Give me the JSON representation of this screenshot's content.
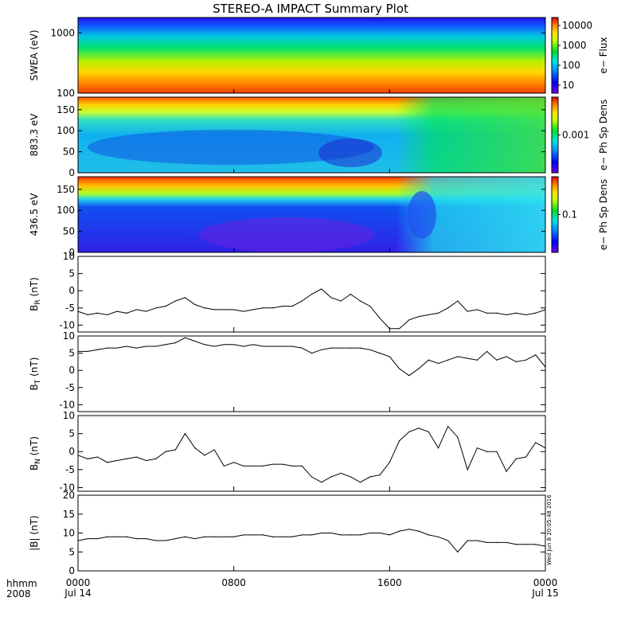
{
  "chart_data": {
    "title": "STEREO-A IMPACT Summary Plot",
    "time_axis": {
      "label_top": "hhmm",
      "label_bottom": "2008",
      "ticks": [
        {
          "hhmm": "0000",
          "date": "Jul 14",
          "hour": 0
        },
        {
          "hhmm": "0800",
          "date": "",
          "hour": 8
        },
        {
          "hhmm": "1600",
          "date": "",
          "hour": 16
        },
        {
          "hhmm": "0000",
          "date": "Jul 15",
          "hour": 24
        }
      ],
      "range_hours": [
        0,
        24
      ]
    },
    "stamp": "Wed Jun 8 20:05:48 2016",
    "spectrograms": [
      {
        "type": "heatmap",
        "ylabel": "SWEA (eV)",
        "yscale": "log",
        "ylim": [
          100,
          1800
        ],
        "yticks": [
          "1000",
          "100"
        ],
        "colorbar_label": "e− Flux",
        "colorbar_ticks": [
          "10000",
          "1000",
          "100",
          "10"
        ]
      },
      {
        "type": "heatmap",
        "ylabel": "883.3 eV",
        "ylim": [
          0,
          180
        ],
        "yticks": [
          "150",
          "100",
          "50",
          "0"
        ],
        "colorbar_label": "e− Ph Sp Dens",
        "colorbar_ticks": [
          "0.001"
        ]
      },
      {
        "type": "heatmap",
        "ylabel": "436.5 eV",
        "ylim": [
          0,
          180
        ],
        "yticks": [
          "150",
          "100",
          "50",
          "0"
        ],
        "colorbar_label": "e− Ph Sp Dens",
        "colorbar_ticks": [
          "0.1"
        ]
      }
    ],
    "line_panels": [
      {
        "type": "line",
        "ylabel_main": "B",
        "ylabel_sub": "R",
        "ylabel_tail": " (nT)",
        "ylim": [
          -12,
          10
        ],
        "yticks": [
          "10",
          "5",
          "0",
          "-5",
          "-10"
        ],
        "x": [
          0,
          0.5,
          1,
          1.5,
          2,
          2.5,
          3,
          3.5,
          4,
          4.5,
          5,
          5.5,
          6,
          6.5,
          7,
          7.5,
          8,
          8.5,
          9,
          9.5,
          10,
          10.5,
          11,
          11.5,
          12,
          12.5,
          13,
          13.5,
          14,
          14.5,
          15,
          15.5,
          16,
          16.5,
          17,
          17.5,
          18,
          18.5,
          19,
          19.5,
          20,
          20.5,
          21,
          21.5,
          22,
          22.5,
          23,
          23.5,
          24
        ],
        "y": [
          -6,
          -7,
          -6.5,
          -7,
          -6,
          -6.5,
          -5.5,
          -6,
          -5,
          -4.5,
          -3,
          -2,
          -4,
          -5,
          -5.5,
          -5.5,
          -5.5,
          -6,
          -5.5,
          -5,
          -5,
          -4.5,
          -4.5,
          -3,
          -1,
          0.5,
          -2,
          -3,
          -1,
          -3,
          -4.5,
          -8,
          -11,
          -11,
          -8.5,
          -7.5,
          -7,
          -6.5,
          -5,
          -3,
          -6,
          -5.5,
          -6.5,
          -6.5,
          -7,
          -6.5,
          -7,
          -6.5,
          -5.5
        ]
      },
      {
        "type": "line",
        "ylabel_main": "B",
        "ylabel_sub": "T",
        "ylabel_tail": " (nT)",
        "ylim": [
          -12,
          10
        ],
        "yticks": [
          "10",
          "5",
          "0",
          "-5",
          "-10"
        ],
        "x": [
          0,
          0.5,
          1,
          1.5,
          2,
          2.5,
          3,
          3.5,
          4,
          4.5,
          5,
          5.5,
          6,
          6.5,
          7,
          7.5,
          8,
          8.5,
          9,
          9.5,
          10,
          10.5,
          11,
          11.5,
          12,
          12.5,
          13,
          13.5,
          14,
          14.5,
          15,
          15.5,
          16,
          16.5,
          17,
          17.5,
          18,
          18.5,
          19,
          19.5,
          20,
          20.5,
          21,
          21.5,
          22,
          22.5,
          23,
          23.5,
          24
        ],
        "y": [
          5.5,
          5.5,
          6,
          6.5,
          6.5,
          7,
          6.5,
          7,
          7,
          7.5,
          8,
          9.5,
          8.5,
          7.5,
          7,
          7.5,
          7.5,
          7,
          7.5,
          7,
          7,
          7,
          7,
          6.5,
          5,
          6,
          6.5,
          6.5,
          6.5,
          6.5,
          6,
          5,
          4,
          0.5,
          -1.5,
          0.5,
          3,
          2,
          3,
          4,
          3.5,
          3,
          5.5,
          3,
          4,
          2.5,
          3,
          4.5,
          1
        ]
      },
      {
        "type": "line",
        "ylabel_main": "B",
        "ylabel_sub": "N",
        "ylabel_tail": " (nT)",
        "ylim": [
          -11,
          10
        ],
        "yticks": [
          "10",
          "5",
          "0",
          "-5",
          "-10"
        ],
        "x": [
          0,
          0.5,
          1,
          1.5,
          2,
          2.5,
          3,
          3.5,
          4,
          4.5,
          5,
          5.5,
          6,
          6.5,
          7,
          7.5,
          8,
          8.5,
          9,
          9.5,
          10,
          10.5,
          11,
          11.5,
          12,
          12.5,
          13,
          13.5,
          14,
          14.5,
          15,
          15.5,
          16,
          16.5,
          17,
          17.5,
          18,
          18.5,
          19,
          19.5,
          20,
          20.5,
          21,
          21.5,
          22,
          22.5,
          23,
          23.5,
          24
        ],
        "y": [
          -1,
          -2,
          -1.5,
          -3,
          -2.5,
          -2,
          -1.5,
          -2.5,
          -2,
          0,
          0.5,
          5,
          1,
          -1,
          0.5,
          -4,
          -3,
          -4,
          -4,
          -4,
          -3.5,
          -3.5,
          -4,
          -4,
          -7,
          -8.5,
          -7,
          -6,
          -7,
          -8.5,
          -7,
          -6.5,
          -3,
          3,
          5.5,
          6.5,
          5.5,
          1,
          7,
          4,
          -5,
          1,
          0,
          0,
          -5.5,
          -2,
          -1.5,
          2.5,
          1
        ]
      },
      {
        "type": "line",
        "ylabel_main": "|B|",
        "ylabel_sub": "",
        "ylabel_tail": " (nT)",
        "ylim": [
          0,
          20
        ],
        "yticks": [
          "20",
          "15",
          "10",
          "5",
          "0"
        ],
        "x": [
          0,
          0.5,
          1,
          1.5,
          2,
          2.5,
          3,
          3.5,
          4,
          4.5,
          5,
          5.5,
          6,
          6.5,
          7,
          7.5,
          8,
          8.5,
          9,
          9.5,
          10,
          10.5,
          11,
          11.5,
          12,
          12.5,
          13,
          13.5,
          14,
          14.5,
          15,
          15.5,
          16,
          16.5,
          17,
          17.5,
          18,
          18.5,
          19,
          19.5,
          20,
          20.5,
          21,
          21.5,
          22,
          22.5,
          23,
          23.5,
          24
        ],
        "y": [
          8,
          8.5,
          8.5,
          9,
          9,
          9,
          8.5,
          8.5,
          8,
          8,
          8.5,
          9,
          8.5,
          9,
          9,
          9,
          9,
          9.5,
          9.5,
          9.5,
          9,
          9,
          9,
          9.5,
          9.5,
          10,
          10,
          9.5,
          9.5,
          9.5,
          10,
          10,
          9.5,
          10.5,
          11,
          10.5,
          9.5,
          9,
          8,
          5,
          8,
          8,
          7.5,
          7.5,
          7.5,
          7,
          7,
          7,
          6.5
        ]
      }
    ]
  }
}
